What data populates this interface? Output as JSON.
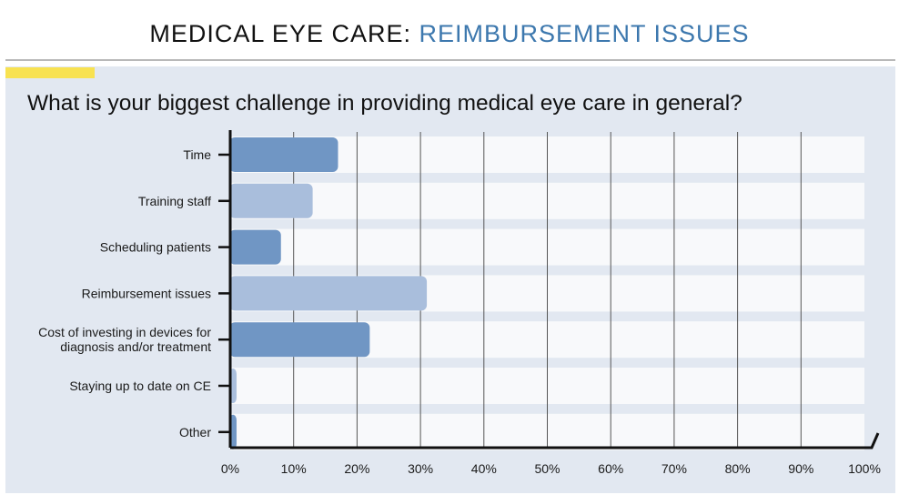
{
  "header": {
    "prefix": "MEDICAL EYE CARE:",
    "accent": "REIMBURSEMENT ISSUES"
  },
  "colors": {
    "accent": "#3d78ae",
    "highlight": "#f8e251",
    "panel": "#e2e8f1",
    "bar_dark": "#7096c4",
    "bar_light": "#a9bedc"
  },
  "chart_data": {
    "type": "bar",
    "orientation": "horizontal",
    "title": "What is your biggest challenge in providing medical eye care in general?",
    "categories": [
      "Time",
      "Training staff",
      "Scheduling patients",
      "Reimbursement issues",
      "Cost of investing in devices for diagnosis and/or treatment",
      "Staying up to date on CE",
      "Other"
    ],
    "category_lines": [
      [
        "Time"
      ],
      [
        "Training staff"
      ],
      [
        "Scheduling patients"
      ],
      [
        "Reimbursement issues"
      ],
      [
        "Cost of investing in devices for",
        "diagnosis and/or treatment"
      ],
      [
        "Staying up to date on CE"
      ],
      [
        "Other"
      ]
    ],
    "values": [
      17,
      13,
      8,
      31,
      22,
      1,
      1
    ],
    "bar_colors": [
      "#7096c4",
      "#a9bedc",
      "#7096c4",
      "#a9bedc",
      "#7096c4",
      "#a9bedc",
      "#7096c4"
    ],
    "xlim": [
      0,
      100
    ],
    "xticks": [
      "0%",
      "10%",
      "20%",
      "30%",
      "40%",
      "50%",
      "60%",
      "70%",
      "80%",
      "90%",
      "100%"
    ],
    "grid": true,
    "legend": "none"
  }
}
